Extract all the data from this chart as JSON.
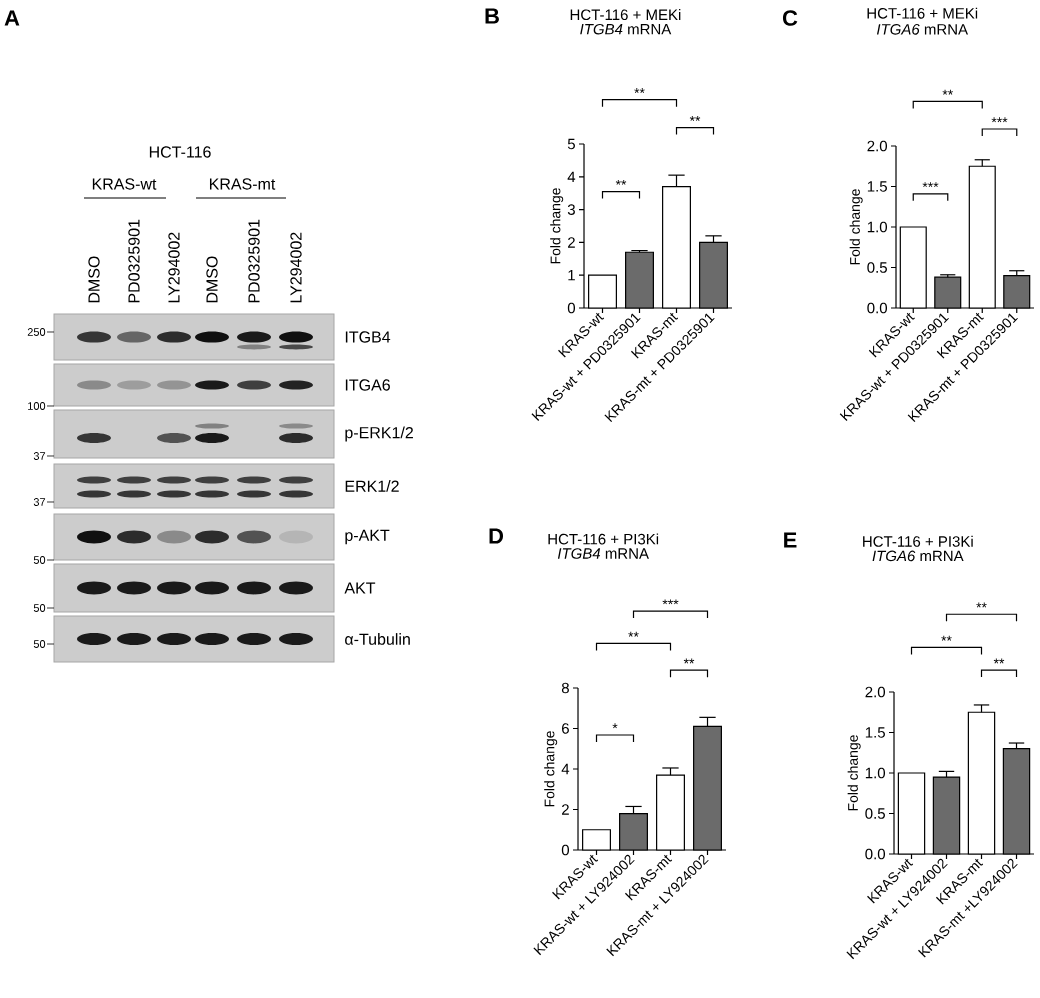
{
  "chart_data": [
    {
      "type": "other",
      "title": "HCT-116",
      "categories": [
        "DMSO",
        "PD0325901",
        "LY294002",
        "DMSO",
        "PD0325901",
        "LY294002"
      ],
      "y_categories": [
        "ITGB4",
        "ITGA6",
        "p-ERK1/2",
        "ERK1/2",
        "p-AKT",
        "AKT",
        "α-Tubulin"
      ],
      "annotations": [
        "A",
        "KRAS-wt",
        "KRAS-mt",
        "250",
        "100",
        "37",
        "37",
        "50",
        "50",
        "50"
      ]
    },
    {
      "type": "bar",
      "title": "HCT-116 + MEKi",
      "subtitle": "*ITGB4* mRNA",
      "ylabel": "Fold change",
      "categories": [
        "KRAS-wt",
        "KRAS-wt + PD0325901",
        "KRAS-mt",
        "KRAS-mt + PD0325901"
      ],
      "values": [
        1,
        1.7,
        3.7,
        2.0
      ],
      "errors": [
        null,
        [
          1.7,
          1.75
        ],
        [
          3.7,
          4.05
        ],
        [
          2.0,
          2.2
        ]
      ],
      "colors": [
        "#ffffff",
        "#6b6b6b",
        "#ffffff",
        "#6b6b6b"
      ],
      "ylim": [
        0,
        5
      ],
      "yticks": [
        0,
        1,
        2,
        3,
        4,
        5
      ],
      "annotations": [
        "B",
        "**",
        "**",
        "**"
      ]
    },
    {
      "type": "bar",
      "title": "HCT-116 + MEKi",
      "subtitle": "*ITGA6* mRNA",
      "ylabel": "Fold change",
      "categories": [
        "KRAS-wt",
        "KRAS-wt + PD0325901",
        "KRAS-mt",
        "KRAS-mt + PD0325901"
      ],
      "values": [
        1,
        0.38,
        1.75,
        0.4
      ],
      "errors": [
        null,
        [
          0.38,
          0.41
        ],
        [
          1.75,
          1.83
        ],
        [
          0.4,
          0.46
        ]
      ],
      "colors": [
        "#ffffff",
        "#6b6b6b",
        "#ffffff",
        "#6b6b6b"
      ],
      "ylim": [
        0,
        2
      ],
      "yticks": [
        {
          "value": 0,
          "label": "0.0"
        },
        0.5,
        {
          "value": 1,
          "label": "1.0"
        },
        1.5,
        {
          "value": 2,
          "label": "2.0"
        }
      ],
      "annotations": [
        "C",
        "**",
        "***",
        "***"
      ]
    },
    {
      "type": "bar",
      "title": "HCT-116 + PI3Ki",
      "subtitle": "*ITGB4* mRNA",
      "ylabel": "Fold change",
      "categories": [
        "KRAS-wt",
        "KRAS-wt + LY924002",
        "KRAS-mt",
        "KRAS-mt + LY924002"
      ],
      "values": [
        1,
        1.8,
        3.7,
        6.1
      ],
      "errors": [
        null,
        [
          1.8,
          2.15
        ],
        [
          3.7,
          4.05
        ],
        [
          6.1,
          6.55
        ]
      ],
      "colors": [
        "#ffffff",
        "#6b6b6b",
        "#ffffff",
        "#6b6b6b"
      ],
      "ylim": [
        0,
        8
      ],
      "yticks": [
        0,
        2,
        4,
        6,
        8
      ],
      "annotations": [
        "D",
        "***",
        "**",
        "**",
        "*"
      ]
    },
    {
      "type": "bar",
      "title": "HCT-116 + PI3Ki",
      "subtitle": "*ITGA6* mRNA",
      "ylabel": "Fold change",
      "categories": [
        "KRAS-wt",
        "KRAS-wt + LY924002",
        "KRAS-mt",
        "KRAS-mt +LY924002"
      ],
      "values": [
        1,
        0.95,
        1.75,
        1.3
      ],
      "errors": [
        null,
        [
          0.95,
          1.02
        ],
        [
          1.75,
          1.84
        ],
        [
          1.3,
          1.37
        ]
      ],
      "colors": [
        "#ffffff",
        "#6b6b6b",
        "#ffffff",
        "#6b6b6b"
      ],
      "ylim": [
        0,
        2
      ],
      "yticks": [
        {
          "value": 0,
          "label": "0.0"
        },
        0.5,
        {
          "value": 1,
          "label": "1.0"
        },
        1.5,
        {
          "value": 2,
          "label": "2.0"
        }
      ],
      "annotations": [
        "E",
        "**",
        "**",
        "**"
      ]
    }
  ]
}
